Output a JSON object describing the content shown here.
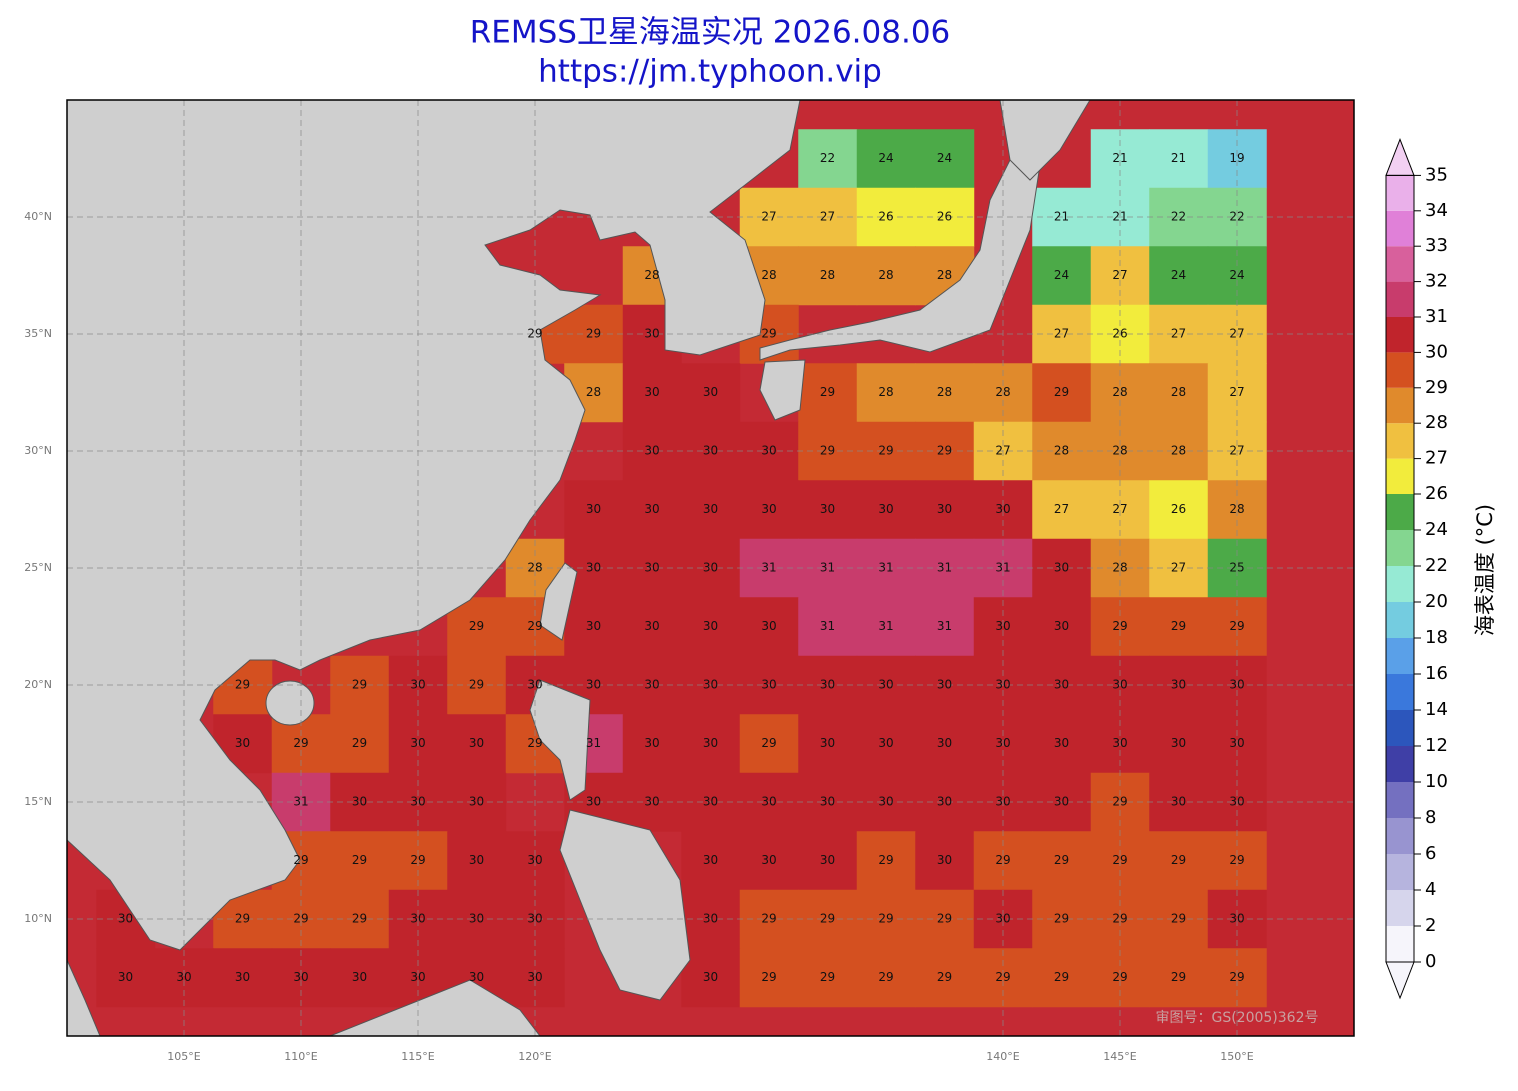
{
  "header": {
    "title": "REMSS卫星海温实况 2026.08.06",
    "subtitle": "https://jm.typhoon.vip"
  },
  "map": {
    "lon_range": [
      100,
      155
    ],
    "lat_range": [
      5,
      45
    ],
    "lon_ticks": [
      {
        "value": 105,
        "label": "105°E"
      },
      {
        "value": 110,
        "label": "110°E"
      },
      {
        "value": 115,
        "label": "115°E"
      },
      {
        "value": 120,
        "label": "120°E"
      },
      {
        "value": 140,
        "label": "140°E"
      },
      {
        "value": 145,
        "label": "145°E"
      },
      {
        "value": 150,
        "label": "150°E"
      }
    ],
    "lat_ticks": [
      {
        "value": 10,
        "label": "10°N"
      },
      {
        "value": 15,
        "label": "15°N"
      },
      {
        "value": 20,
        "label": "20°N"
      },
      {
        "value": 25,
        "label": "25°N"
      },
      {
        "value": 30,
        "label": "30°N"
      },
      {
        "value": 35,
        "label": "35°N"
      },
      {
        "value": 40,
        "label": "40°N"
      }
    ],
    "sst_labels": [
      {
        "lat": 42.5,
        "lon": [
          132.5,
          135,
          137.5,
          145,
          147.5,
          150
        ],
        "values": [
          22,
          24,
          24,
          21,
          21,
          19
        ]
      },
      {
        "lat": 40,
        "lon": [
          130,
          132.5,
          135,
          137.5,
          142.5,
          145,
          147.5,
          150
        ],
        "values": [
          27,
          27,
          26,
          26,
          21,
          21,
          22,
          22
        ]
      },
      {
        "lat": 37.5,
        "lon": [
          125,
          130,
          132.5,
          135,
          137.5,
          142.5,
          145,
          147.5,
          150
        ],
        "values": [
          28,
          28,
          28,
          28,
          28,
          24,
          27,
          24,
          24
        ]
      },
      {
        "lat": 35,
        "lon": [
          120,
          122.5,
          125,
          130,
          142.5,
          145,
          147.5,
          150
        ],
        "values": [
          29,
          29,
          30,
          29,
          27,
          26,
          27,
          27
        ]
      },
      {
        "lat": 32.5,
        "lon": [
          122.5,
          125,
          127.5,
          132.5,
          135,
          137.5,
          140,
          142.5,
          145,
          147.5,
          150
        ],
        "values": [
          28,
          30,
          30,
          29,
          28,
          28,
          28,
          29,
          28,
          28,
          27
        ]
      },
      {
        "lat": 30,
        "lon": [
          125,
          127.5,
          130,
          132.5,
          135,
          137.5,
          140,
          142.5,
          145,
          147.5,
          150
        ],
        "values": [
          30,
          30,
          30,
          29,
          29,
          29,
          27,
          28,
          28,
          28,
          27
        ]
      },
      {
        "lat": 27.5,
        "lon": [
          122.5,
          125,
          127.5,
          130,
          132.5,
          135,
          137.5,
          140,
          142.5,
          145,
          147.5,
          150
        ],
        "values": [
          30,
          30,
          30,
          30,
          30,
          30,
          30,
          30,
          27,
          27,
          26,
          28
        ]
      },
      {
        "lat": 25,
        "lon": [
          120,
          122.5,
          125,
          127.5,
          130,
          132.5,
          135,
          137.5,
          140,
          142.5,
          145,
          147.5,
          150
        ],
        "values": [
          28,
          30,
          30,
          30,
          31,
          31,
          31,
          31,
          31,
          30,
          28,
          27,
          25
        ]
      },
      {
        "lat": 22.5,
        "lon": [
          117.5,
          120,
          122.5,
          125,
          127.5,
          130,
          132.5,
          135,
          137.5,
          140,
          142.5,
          145,
          147.5,
          150
        ],
        "values": [
          29,
          29,
          30,
          30,
          30,
          30,
          31,
          31,
          31,
          30,
          30,
          29,
          29,
          29
        ]
      },
      {
        "lat": 20,
        "lon": [
          107.5,
          112.5,
          115,
          117.5,
          120,
          122.5,
          125,
          127.5,
          130,
          132.5,
          135,
          137.5,
          140,
          142.5,
          145,
          147.5,
          150
        ],
        "values": [
          29,
          29,
          30,
          29,
          30,
          30,
          30,
          30,
          30,
          30,
          30,
          30,
          30,
          30,
          30,
          30,
          30
        ]
      },
      {
        "lat": 17.5,
        "lon": [
          107.5,
          110,
          112.5,
          115,
          117.5,
          120,
          122.5,
          125,
          127.5,
          130,
          132.5,
          135,
          137.5,
          140,
          142.5,
          145,
          147.5,
          150
        ],
        "values": [
          30,
          29,
          29,
          30,
          30,
          29,
          31,
          30,
          30,
          29,
          30,
          30,
          30,
          30,
          30,
          30,
          30,
          30
        ]
      },
      {
        "lat": 15,
        "lon": [
          110,
          112.5,
          115,
          117.5,
          122.5,
          125,
          127.5,
          130,
          132.5,
          135,
          137.5,
          140,
          142.5,
          145,
          147.5,
          150
        ],
        "values": [
          31,
          30,
          30,
          30,
          30,
          30,
          30,
          30,
          30,
          30,
          30,
          30,
          30,
          29,
          30,
          30
        ]
      },
      {
        "lat": 12.5,
        "lon": [
          110,
          112.5,
          115,
          117.5,
          120,
          127.5,
          130,
          132.5,
          135,
          137.5,
          140,
          142.5,
          145,
          147.5,
          150
        ],
        "values": [
          29,
          29,
          29,
          30,
          30,
          30,
          30,
          30,
          29,
          30,
          29,
          29,
          29,
          29,
          29
        ]
      },
      {
        "lat": 10,
        "lon": [
          102.5,
          107.5,
          110,
          112.5,
          115,
          117.5,
          120,
          127.5,
          130,
          132.5,
          135,
          137.5,
          140,
          142.5,
          145,
          147.5,
          150
        ],
        "values": [
          30,
          29,
          29,
          29,
          30,
          30,
          30,
          30,
          29,
          29,
          29,
          29,
          30,
          29,
          29,
          29,
          30
        ]
      },
      {
        "lat": 7.5,
        "lon": [
          102.5,
          105,
          107.5,
          110,
          112.5,
          115,
          117.5,
          120,
          127.5,
          130,
          132.5,
          135,
          137.5,
          140,
          142.5,
          145,
          147.5,
          150
        ],
        "values": [
          30,
          30,
          30,
          30,
          30,
          30,
          30,
          30,
          30,
          29,
          29,
          29,
          29,
          29,
          29,
          29,
          29,
          29
        ]
      }
    ],
    "watermark": "审图号：GS(2005)362号"
  },
  "colorbar": {
    "label": "海表温度 (°C)",
    "ticks": [
      0,
      2,
      4,
      6,
      8,
      10,
      12,
      14,
      16,
      18,
      20,
      22,
      24,
      26,
      27,
      28,
      29,
      30,
      31,
      32,
      33,
      34,
      35
    ],
    "colors": [
      "#f6f5fb",
      "#d6d5ec",
      "#b6b4de",
      "#9894d0",
      "#7470c0",
      "#3f3fa6",
      "#2c56bc",
      "#3a78dc",
      "#5aa0e8",
      "#74cce0",
      "#96ead4",
      "#84d690",
      "#4caa48",
      "#f2ec3c",
      "#f0c040",
      "#e08a2c",
      "#d45020",
      "#c0242c",
      "#c83c6c",
      "#d8609c",
      "#e080d8",
      "#eab0ea",
      "#f2d0f2"
    ]
  }
}
